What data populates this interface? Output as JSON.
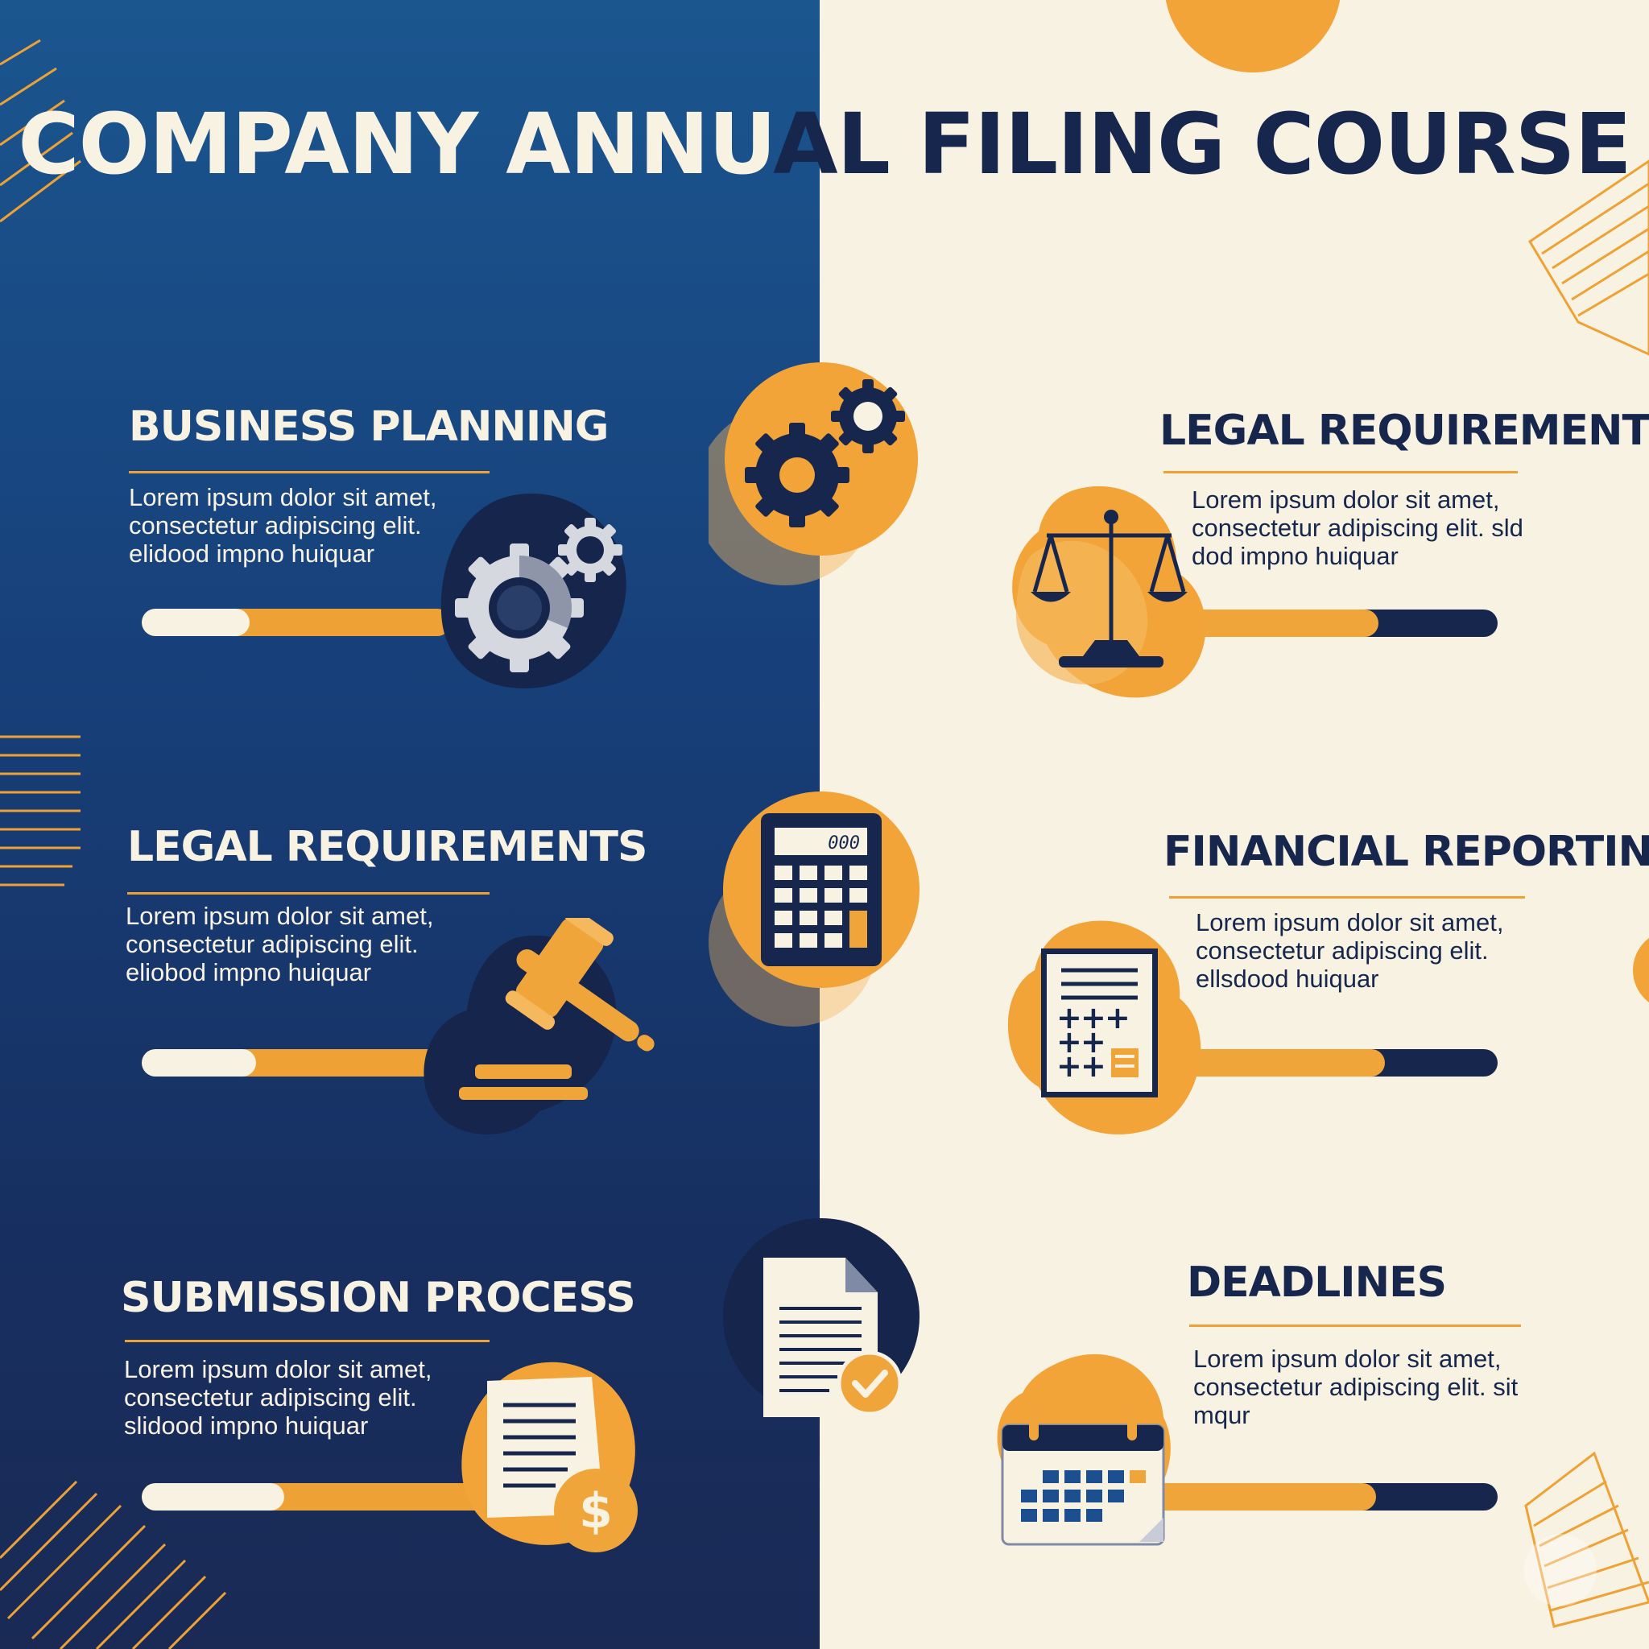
{
  "title": {
    "left_part": "COMPANY ANNU",
    "right_part": "AL FILING COURSE"
  },
  "colors": {
    "navy": "#17264d",
    "blue": "#1b568f",
    "orange": "#eea236",
    "cream": "#f8f2e2"
  },
  "sections": [
    {
      "heading": "BUSINESS PLANNING",
      "body": "Lorem ipsum dolor sit amet, consectetur adipiscing elit. elidood impno huiquar",
      "icon": "gears-icon",
      "progress": 0.35
    },
    {
      "heading": "LEGAL REQUIREMENTS",
      "body": "Lorem ipsum dolor sit amet, consectetur adipiscing elit. sld dod impno huiquar",
      "icon": "scales-of-justice-icon",
      "progress": 0.72
    },
    {
      "heading": "LEGAL REQUIREMENTS",
      "body": "Lorem ipsum dolor sit amet, consectetur adipiscing elit. eliobod impno huiquar",
      "icon": "gavel-icon",
      "progress": 0.37
    },
    {
      "heading": "FINANCIAL REPORTING",
      "body": "Lorem ipsum dolor sit amet, consectetur adipiscing elit. ellsdood huiquar",
      "icon": "financial-report-icon",
      "progress": 0.74
    },
    {
      "heading": "SUBMISSION PROCESS",
      "body": "Lorem ipsum dolor sit amet, consectetur adipiscing elit. slidood impno huiquar",
      "icon": "invoice-dollar-icon",
      "progress": 0.41
    },
    {
      "heading": "DEADLINES",
      "body": "Lorem ipsum dolor sit amet, consectetur adipiscing elit. sit mqur",
      "icon": "calendar-icon",
      "progress": 0.72
    }
  ],
  "center_icons": [
    {
      "icon": "gears-icon"
    },
    {
      "icon": "calculator-icon",
      "display": "000"
    },
    {
      "icon": "document-check-icon"
    }
  ]
}
